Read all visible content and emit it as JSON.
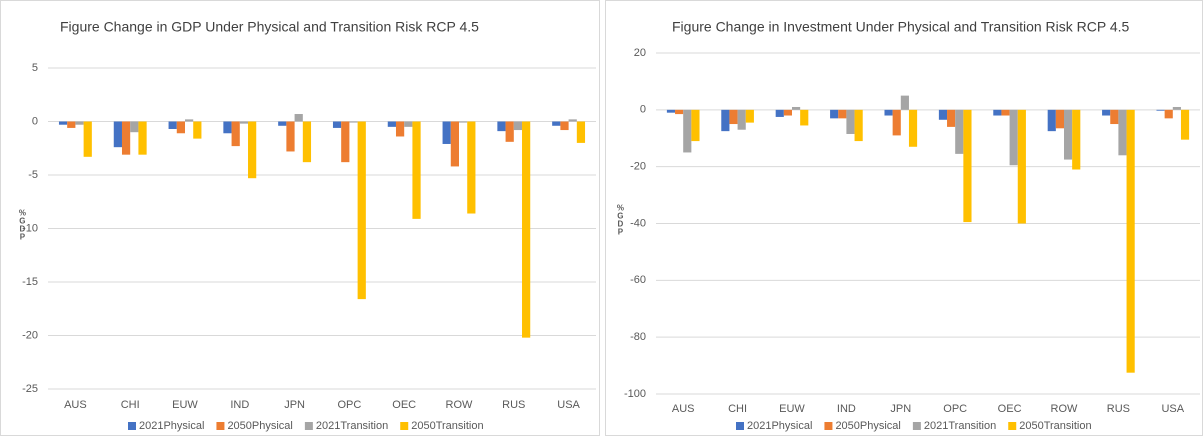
{
  "chart_data": [
    {
      "type": "bar",
      "title": "Figure Change in GDP Under Physical and Transition Risk RCP 4.5",
      "y_label": "%GDP",
      "categories": [
        "AUS",
        "CHI",
        "EUW",
        "IND",
        "JPN",
        "OPC",
        "OEC",
        "ROW",
        "RUS",
        "USA"
      ],
      "series": [
        {
          "name": "2021Physical",
          "color": "#4472c4",
          "values": [
            -0.3,
            -2.4,
            -0.7,
            -1.1,
            -0.4,
            -0.6,
            -0.5,
            -2.1,
            -0.9,
            -0.4
          ]
        },
        {
          "name": "2050Physical",
          "color": "#ed7d31",
          "values": [
            -0.6,
            -3.1,
            -1.1,
            -2.3,
            -2.8,
            -3.8,
            -1.4,
            -4.2,
            -1.9,
            -0.8
          ]
        },
        {
          "name": "2021Transition",
          "color": "#a5a5a5",
          "values": [
            -0.3,
            -1.0,
            0.2,
            -0.2,
            0.7,
            -0.1,
            -0.5,
            -0.1,
            -0.8,
            0.2
          ]
        },
        {
          "name": "2050Transition",
          "color": "#ffc000",
          "values": [
            -3.3,
            -3.1,
            -1.6,
            -5.3,
            -3.8,
            -16.6,
            -9.1,
            -8.6,
            -20.2,
            -2.0
          ]
        }
      ],
      "ylim": [
        -25,
        5
      ],
      "yticks": [
        -25,
        -20,
        -15,
        -10,
        -5,
        0,
        5
      ],
      "grid": true,
      "legend": "bottom"
    },
    {
      "type": "bar",
      "title": "Figure Change in Investment Under Physical and Transition Risk RCP 4.5",
      "y_label": "%GDP",
      "categories": [
        "AUS",
        "CHI",
        "EUW",
        "IND",
        "JPN",
        "OPC",
        "OEC",
        "ROW",
        "RUS",
        "USA"
      ],
      "series": [
        {
          "name": "2021Physical",
          "color": "#4472c4",
          "values": [
            -1,
            -7.5,
            -2.5,
            -3,
            -2,
            -3.5,
            -2,
            -7.5,
            -2,
            -0.3
          ]
        },
        {
          "name": "2050Physical",
          "color": "#ed7d31",
          "values": [
            -1.5,
            -5,
            -2,
            -3,
            -9,
            -6,
            -2,
            -6.5,
            -5,
            -3
          ]
        },
        {
          "name": "2021Transition",
          "color": "#a5a5a5",
          "values": [
            -15,
            -7,
            1,
            -8.5,
            5,
            -15.5,
            -19.5,
            -17.5,
            -16,
            1
          ]
        },
        {
          "name": "2050Transition",
          "color": "#ffc000",
          "values": [
            -11,
            -4.5,
            -5.5,
            -11,
            -13,
            -39.5,
            -40,
            -21,
            -92.5,
            -10.5
          ]
        }
      ],
      "ylim": [
        -100,
        20
      ],
      "yticks": [
        -100,
        -80,
        -60,
        -40,
        -20,
        0,
        20
      ],
      "grid": true,
      "legend": "bottom"
    }
  ]
}
